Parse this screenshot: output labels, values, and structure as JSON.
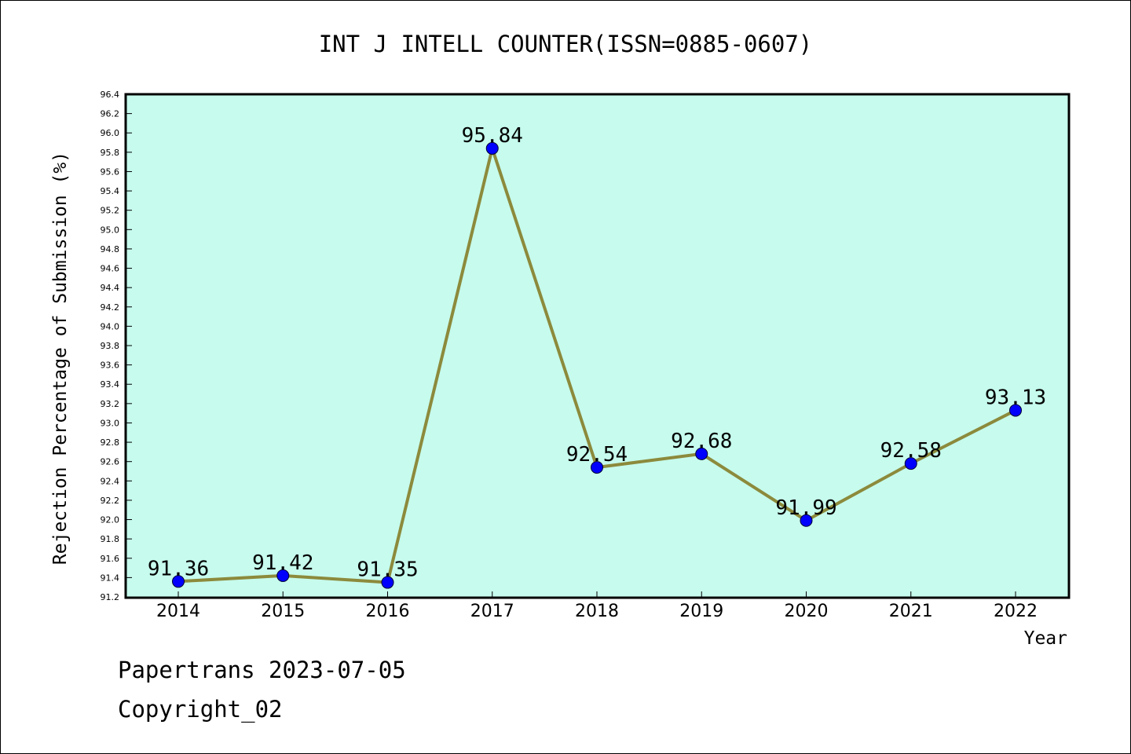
{
  "chart_data": {
    "type": "line",
    "title": "INT J INTELL COUNTER(ISSN=0885-0607)",
    "xlabel": "Year",
    "ylabel": "Rejection Percentage of Submission (%)",
    "categories": [
      "2014",
      "2015",
      "2016",
      "2017",
      "2018",
      "2019",
      "2020",
      "2021",
      "2022"
    ],
    "series": [
      {
        "values": [
          91.36,
          91.42,
          91.35,
          95.84,
          92.54,
          92.68,
          91.99,
          92.58,
          93.13
        ],
        "data_labels": [
          "91.36",
          "91.42",
          "91.35",
          "95.84",
          "92.54",
          "92.68",
          "91.99",
          "92.58",
          "93.13"
        ]
      }
    ],
    "ylim": [
      91.2,
      96.4
    ],
    "yticks": [
      "91.2",
      "91.4",
      "91.6",
      "91.8",
      "92.0",
      "92.2",
      "92.4",
      "92.6",
      "92.8",
      "93.0",
      "93.2",
      "93.4",
      "93.6",
      "93.8",
      "94.0",
      "94.2",
      "94.4",
      "94.6",
      "94.8",
      "95.0",
      "95.2",
      "95.4",
      "95.6",
      "95.8",
      "96.0",
      "96.2",
      "96.4"
    ],
    "grid": false,
    "colors": {
      "plot_background": "#c6fbed",
      "line": "#8c8a3c",
      "marker": "#0000ff",
      "axis": "#000000"
    }
  },
  "footer": {
    "line1": "Papertrans 2023-07-05",
    "line2": "Copyright_02"
  }
}
